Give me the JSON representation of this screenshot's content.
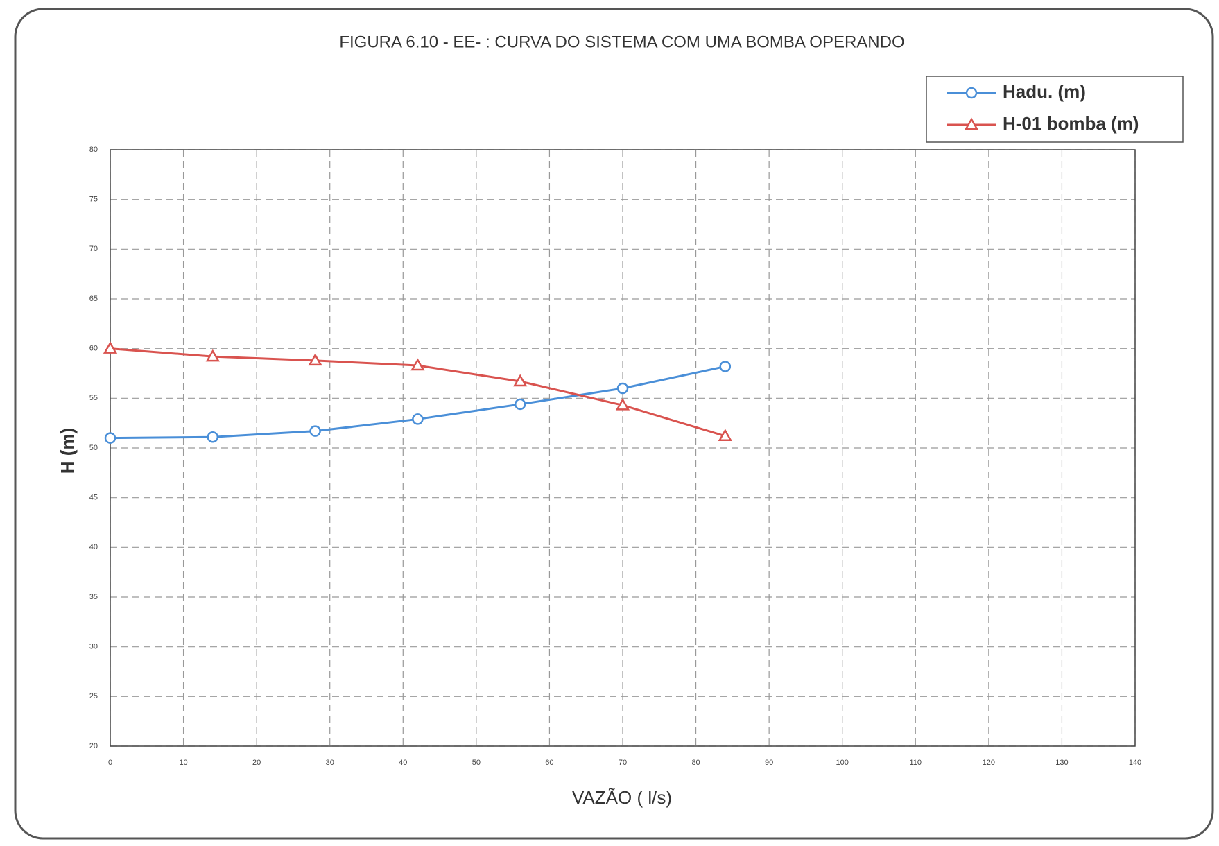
{
  "chart_data": {
    "type": "line",
    "title": "FIGURA 6.10 - EE- : CURVA DO SISTEMA COM UMA BOMBA OPERANDO",
    "x_label": "VAZÃO ( l/s)",
    "y_label": "H (m)",
    "x": [
      0,
      14,
      28,
      42,
      56,
      70,
      84
    ],
    "series": [
      {
        "name": "Hadu. (m)",
        "color": "#4a8fd8",
        "marker": "circle",
        "values": [
          51,
          51.1,
          51.7,
          52.9,
          54.4,
          56,
          58.2
        ]
      },
      {
        "name": "H-01 bomba (m)",
        "color": "#d9534f",
        "marker": "triangle",
        "values": [
          60,
          59.2,
          58.8,
          58.3,
          56.7,
          54.3,
          51.2
        ]
      }
    ],
    "xlim": [
      0,
      140
    ],
    "xticks": [
      0,
      10,
      20,
      30,
      40,
      50,
      60,
      70,
      80,
      90,
      100,
      110,
      120,
      130,
      140
    ],
    "ylim": [
      20,
      80
    ],
    "yticks": [
      20,
      25,
      30,
      35,
      40,
      45,
      50,
      55,
      60,
      65,
      70,
      75,
      80
    ],
    "grid": true,
    "legend": "top-right"
  }
}
